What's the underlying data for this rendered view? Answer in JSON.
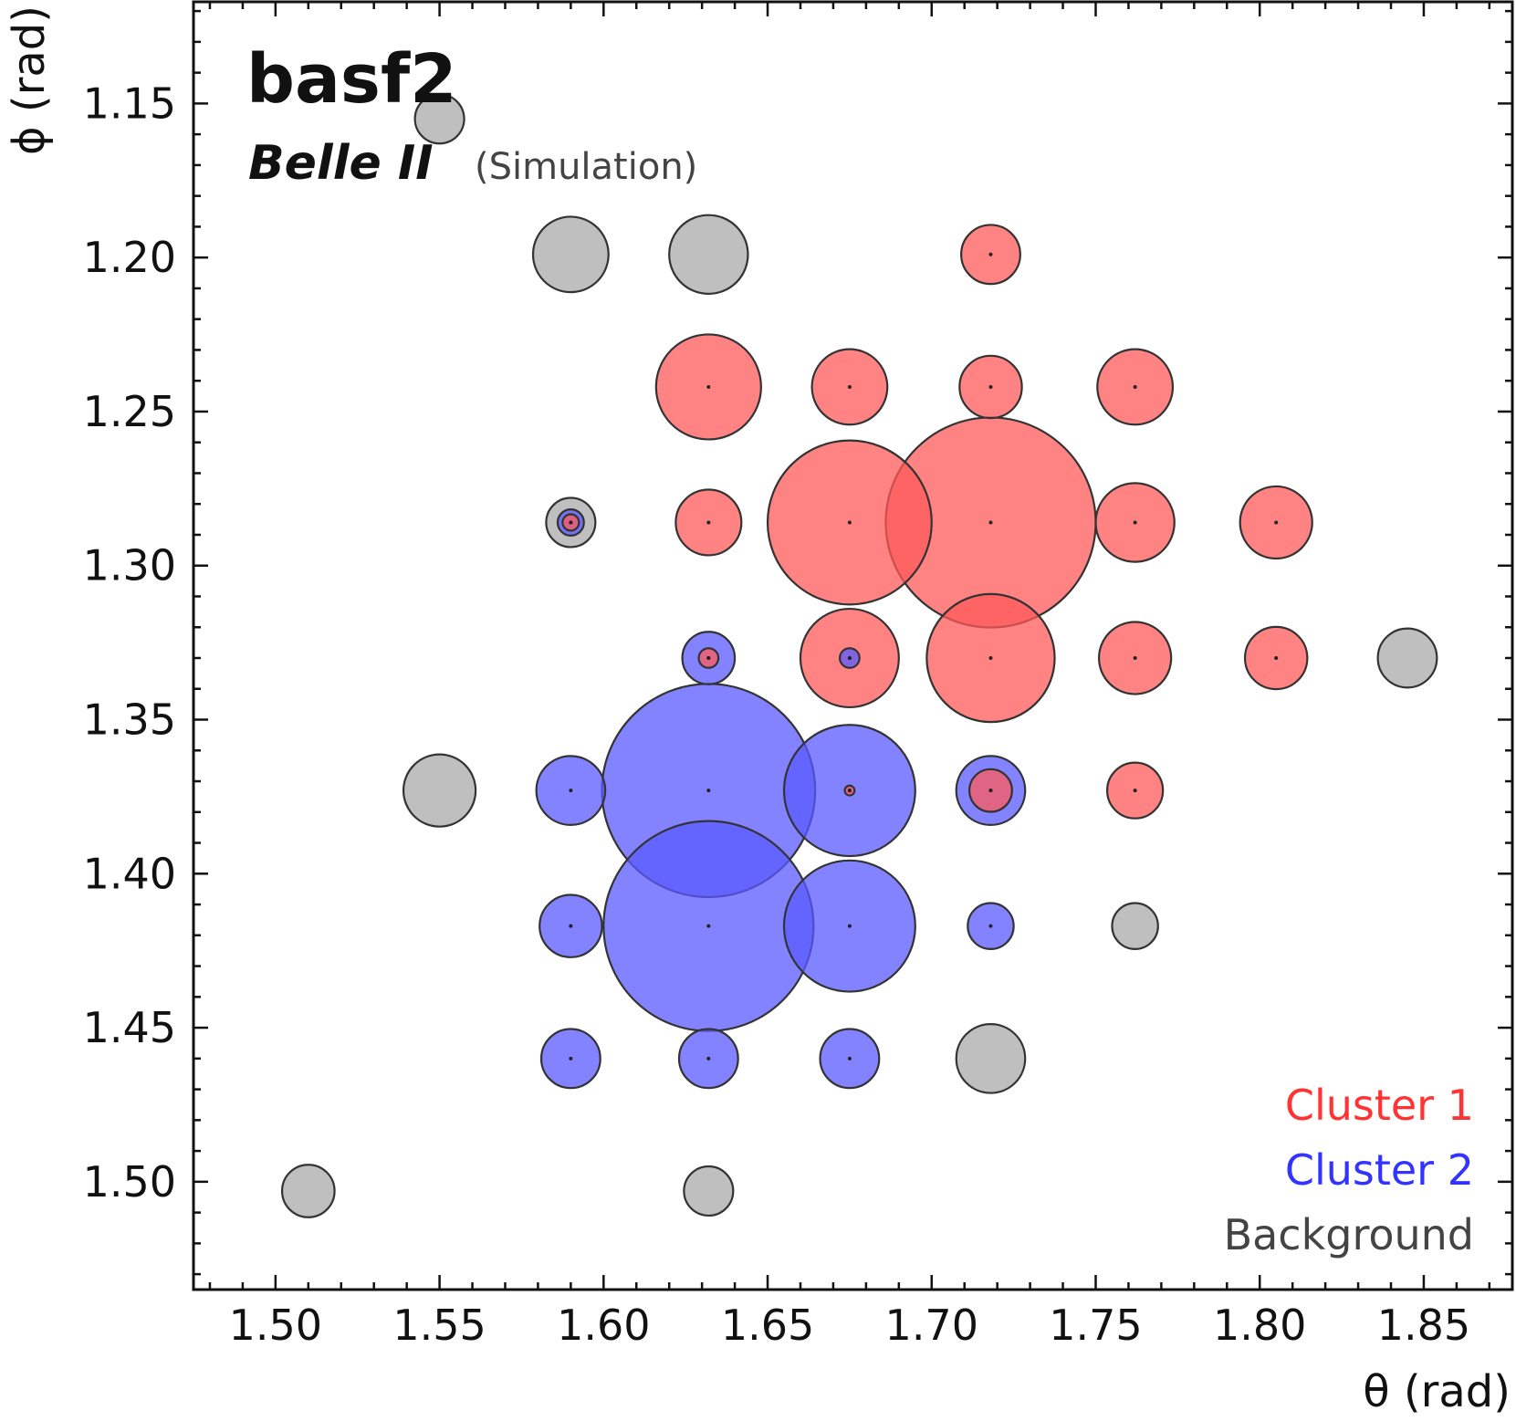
{
  "chart_data": {
    "type": "scatter",
    "title": "",
    "watermark": {
      "software": "basf2",
      "experiment": "Belle II",
      "note": "(Simulation)"
    },
    "xlabel": "θ (rad)",
    "ylabel": "ϕ (rad)",
    "xlim": [
      1.475,
      1.877
    ],
    "ylim": [
      1.535,
      1.117
    ],
    "y_inverted": true,
    "xticks": [
      "1.50",
      "1.55",
      "1.60",
      "1.65",
      "1.70",
      "1.75",
      "1.80",
      "1.85"
    ],
    "yticks": [
      "1.15",
      "1.20",
      "1.25",
      "1.30",
      "1.35",
      "1.40",
      "1.45",
      "1.50"
    ],
    "grid": false,
    "legend_placement": "bottom-right",
    "colors": {
      "cluster1": "#ff5a5a",
      "cluster2": "#5a5aff",
      "background": "#aaaaaa",
      "cluster1_text": "#ff3333",
      "cluster2_text": "#3333ff",
      "background_text": "#444444"
    },
    "series": [
      {
        "name": "Cluster 1",
        "color": "#ff5a5a",
        "points": [
          {
            "x": 1.718,
            "y": 1.199,
            "size": 0.18
          },
          {
            "x": 1.632,
            "y": 1.242,
            "size": 0.32
          },
          {
            "x": 1.675,
            "y": 1.242,
            "size": 0.23
          },
          {
            "x": 1.718,
            "y": 1.242,
            "size": 0.19
          },
          {
            "x": 1.762,
            "y": 1.242,
            "size": 0.23
          },
          {
            "x": 1.632,
            "y": 1.286,
            "size": 0.2
          },
          {
            "x": 1.675,
            "y": 1.286,
            "size": 0.5
          },
          {
            "x": 1.718,
            "y": 1.286,
            "size": 0.64
          },
          {
            "x": 1.762,
            "y": 1.286,
            "size": 0.24
          },
          {
            "x": 1.805,
            "y": 1.286,
            "size": 0.22
          },
          {
            "x": 1.675,
            "y": 1.33,
            "size": 0.3
          },
          {
            "x": 1.718,
            "y": 1.33,
            "size": 0.39
          },
          {
            "x": 1.762,
            "y": 1.33,
            "size": 0.22
          },
          {
            "x": 1.805,
            "y": 1.33,
            "size": 0.19
          },
          {
            "x": 1.632,
            "y": 1.33,
            "size": 0.06
          },
          {
            "x": 1.59,
            "y": 1.286,
            "size": 0.05
          },
          {
            "x": 1.718,
            "y": 1.373,
            "size": 0.13
          },
          {
            "x": 1.762,
            "y": 1.373,
            "size": 0.17
          },
          {
            "x": 1.675,
            "y": 1.373,
            "size": 0.03
          }
        ]
      },
      {
        "name": "Cluster 2",
        "color": "#5a5aff",
        "points": [
          {
            "x": 1.632,
            "y": 1.33,
            "size": 0.16
          },
          {
            "x": 1.675,
            "y": 1.33,
            "size": 0.06
          },
          {
            "x": 1.59,
            "y": 1.286,
            "size": 0.08
          },
          {
            "x": 1.59,
            "y": 1.373,
            "size": 0.21
          },
          {
            "x": 1.632,
            "y": 1.373,
            "size": 0.65
          },
          {
            "x": 1.675,
            "y": 1.373,
            "size": 0.4
          },
          {
            "x": 1.718,
            "y": 1.373,
            "size": 0.21
          },
          {
            "x": 1.59,
            "y": 1.417,
            "size": 0.19
          },
          {
            "x": 1.632,
            "y": 1.417,
            "size": 0.64
          },
          {
            "x": 1.675,
            "y": 1.417,
            "size": 0.4
          },
          {
            "x": 1.718,
            "y": 1.417,
            "size": 0.14
          },
          {
            "x": 1.59,
            "y": 1.46,
            "size": 0.18
          },
          {
            "x": 1.632,
            "y": 1.46,
            "size": 0.18
          },
          {
            "x": 1.675,
            "y": 1.46,
            "size": 0.18
          }
        ]
      },
      {
        "name": "Background",
        "color": "#aaaaaa",
        "points": [
          {
            "x": 1.55,
            "y": 1.155,
            "size": 0.15
          },
          {
            "x": 1.59,
            "y": 1.199,
            "size": 0.23
          },
          {
            "x": 1.632,
            "y": 1.199,
            "size": 0.24
          },
          {
            "x": 1.59,
            "y": 1.286,
            "size": 0.15
          },
          {
            "x": 1.845,
            "y": 1.33,
            "size": 0.18
          },
          {
            "x": 1.55,
            "y": 1.373,
            "size": 0.22
          },
          {
            "x": 1.762,
            "y": 1.417,
            "size": 0.14
          },
          {
            "x": 1.718,
            "y": 1.46,
            "size": 0.21
          },
          {
            "x": 1.51,
            "y": 1.503,
            "size": 0.16
          },
          {
            "x": 1.632,
            "y": 1.503,
            "size": 0.15
          }
        ]
      }
    ],
    "legend": [
      {
        "label": "Cluster 1",
        "color": "#ff3333"
      },
      {
        "label": "Cluster 2",
        "color": "#3333ff"
      },
      {
        "label": "Background",
        "color": "#444444"
      }
    ]
  }
}
